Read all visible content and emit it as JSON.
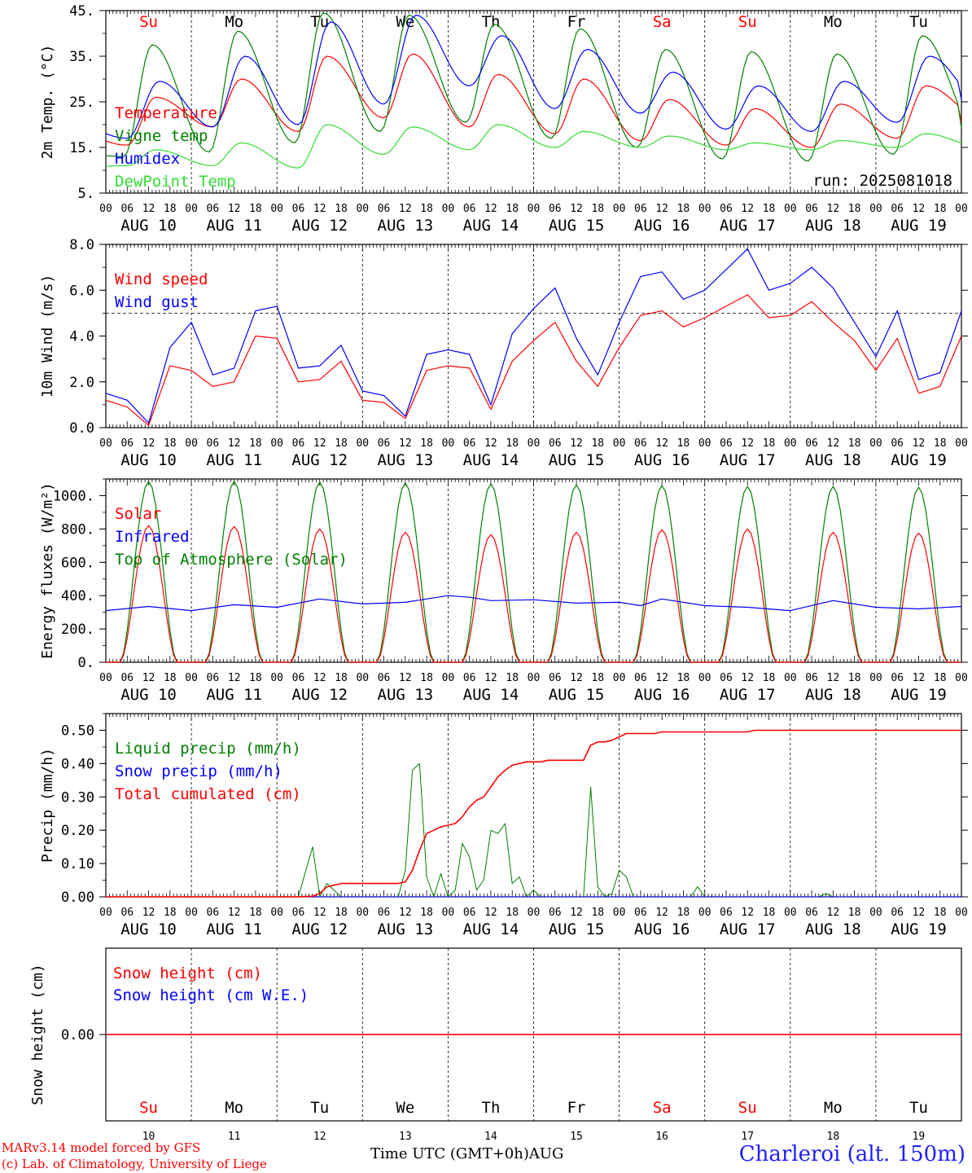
{
  "colors": {
    "red": "#ff0000",
    "green": "#008000",
    "blue": "#0000ff",
    "lime": "#33dd33",
    "axis": "#000000"
  },
  "days": {
    "names": [
      "Su",
      "Mo",
      "Tu",
      "We",
      "Th",
      "Fr",
      "Sa",
      "Su",
      "Mo",
      "Tu"
    ],
    "weekend": [
      true,
      false,
      false,
      false,
      false,
      false,
      true,
      true,
      false,
      false
    ],
    "dates": [
      "AUG 10",
      "AUG 11",
      "AUG 12",
      "AUG 13",
      "AUG 14",
      "AUG 15",
      "AUG 16",
      "AUG 17",
      "AUG 18",
      "AUG 19"
    ],
    "numbers": [
      "10",
      "11",
      "12",
      "13",
      "14",
      "15",
      "16",
      "17",
      "18",
      "19"
    ],
    "hour_ticks": [
      "00",
      "06",
      "12",
      "18"
    ],
    "final_tick": "00"
  },
  "footer": {
    "credit_line1": "MARv3.14 model forced by GFS",
    "credit_line2": "(c) Lab. of Climatology, University of Liege",
    "xaxis_title": "Time UTC (GMT+0h)AUG",
    "station": "Charleroi (alt. 150m)"
  },
  "chart_data": [
    {
      "type": "line",
      "ylabel": "2m Temp. (°C)",
      "ylim": [
        5,
        45
      ],
      "yticks": [
        "5.",
        "15.",
        "25.",
        "35.",
        "45."
      ],
      "annotation": "run: 2025081018",
      "series": [
        {
          "name": "Temperature",
          "color": "#ff0000",
          "min": [
            15.5,
            19.5,
            18.5,
            21.5,
            19.5,
            18.0,
            16.5,
            15.5,
            15.0,
            17.0
          ],
          "max": [
            26.0,
            30.0,
            35.0,
            35.5,
            31.0,
            30.0,
            25.5,
            23.5,
            24.5,
            28.5
          ],
          "start": 18.5,
          "end": 21.5
        },
        {
          "name": "Vigne temp",
          "color": "#008000",
          "min": [
            13.0,
            14.0,
            16.0,
            18.5,
            20.5,
            17.0,
            15.0,
            12.5,
            12.0,
            13.5
          ],
          "max": [
            37.5,
            40.5,
            44.5,
            44.0,
            42.0,
            41.0,
            36.5,
            36.0,
            35.5,
            39.5
          ],
          "start": 14.0,
          "end": 18.0
        },
        {
          "name": "Humidex",
          "color": "#0000ff",
          "min": [
            17.0,
            19.5,
            20.0,
            24.5,
            28.5,
            23.5,
            22.5,
            19.0,
            18.5,
            20.5
          ],
          "max": [
            29.5,
            35.0,
            42.5,
            44.0,
            39.5,
            36.5,
            31.5,
            28.5,
            29.5,
            35.0
          ],
          "start": 20.0,
          "end": 25.0
        },
        {
          "name": "DewPoint Temp",
          "color": "#33dd33",
          "min": [
            11.0,
            11.0,
            10.5,
            13.5,
            14.5,
            15.0,
            15.0,
            14.5,
            14.5,
            15.0
          ],
          "max": [
            14.5,
            16.0,
            20.0,
            19.5,
            20.0,
            18.5,
            17.5,
            16.0,
            16.5,
            18.0
          ],
          "start": 10.5,
          "end": 15.0
        }
      ]
    },
    {
      "type": "line",
      "ylabel": "10m Wind (m/s)",
      "ylim": [
        0,
        8
      ],
      "yticks": [
        "0.0",
        "2.0",
        "4.0",
        "6.0",
        "8.0"
      ],
      "reference_line": 5.0,
      "x_hours": [
        0,
        6,
        12,
        18,
        24,
        30,
        36,
        42,
        48,
        54,
        60,
        66,
        72,
        78,
        84,
        90,
        96,
        102,
        108,
        114,
        120,
        126,
        132,
        138,
        144,
        150,
        156,
        162,
        168,
        174,
        180,
        186,
        192,
        198,
        204,
        210,
        216,
        222,
        228,
        234,
        240
      ],
      "series": [
        {
          "name": "Wind speed",
          "color": "#ff0000",
          "values": [
            1.2,
            0.9,
            0.1,
            2.7,
            2.5,
            1.8,
            2.0,
            4.0,
            3.9,
            2.0,
            2.1,
            2.9,
            1.2,
            1.1,
            0.4,
            2.5,
            2.7,
            2.6,
            0.8,
            2.9,
            3.8,
            4.6,
            2.9,
            1.8,
            3.5,
            4.9,
            5.1,
            4.4,
            4.8,
            5.3,
            5.8,
            4.8,
            4.9,
            5.5,
            4.6,
            3.8,
            2.5,
            3.9,
            1.5,
            1.8,
            4.0
          ]
        },
        {
          "name": "Wind gust",
          "color": "#0000ff",
          "values": [
            1.5,
            1.2,
            0.2,
            3.5,
            4.6,
            2.3,
            2.6,
            5.1,
            5.3,
            2.6,
            2.7,
            3.6,
            1.6,
            1.4,
            0.5,
            3.2,
            3.4,
            3.2,
            1.0,
            4.1,
            5.2,
            6.1,
            3.9,
            2.3,
            4.6,
            6.6,
            6.8,
            5.6,
            6.0,
            6.9,
            7.8,
            6.0,
            6.3,
            7.0,
            6.1,
            4.6,
            3.1,
            5.1,
            2.1,
            2.4,
            5.1
          ]
        }
      ]
    },
    {
      "type": "line",
      "ylabel": "Energy fluxes (W/m²)",
      "ylim": [
        0,
        1100
      ],
      "yticks": [
        "0.",
        "200.",
        "400.",
        "600.",
        "800.",
        "1000."
      ],
      "series": [
        {
          "name": "Solar",
          "color": "#ff0000",
          "peak": [
            820,
            815,
            800,
            780,
            765,
            780,
            795,
            800,
            780,
            775
          ]
        },
        {
          "name": "Infrared",
          "color": "#0000ff",
          "x_hours": [
            0,
            12,
            24,
            36,
            48,
            60,
            72,
            84,
            96,
            102,
            108,
            120,
            132,
            144,
            150,
            156,
            168,
            180,
            192,
            204,
            216,
            228,
            240
          ],
          "values": [
            310,
            335,
            310,
            345,
            330,
            380,
            350,
            360,
            400,
            390,
            370,
            375,
            355,
            360,
            340,
            380,
            340,
            330,
            310,
            370,
            330,
            320,
            335
          ]
        },
        {
          "name": "Top of Atmosphere (Solar)",
          "color": "#008000",
          "peak": [
            1085,
            1085,
            1080,
            1075,
            1070,
            1065,
            1060,
            1055,
            1055,
            1050
          ]
        }
      ]
    },
    {
      "type": "line",
      "ylabel": "Precip (mm/h)",
      "ylim": [
        0,
        0.55
      ],
      "yticks": [
        "0.00",
        "0.10",
        "0.20",
        "0.30",
        "0.40",
        "0.50"
      ],
      "x_hours": [
        0,
        48,
        54,
        58,
        60,
        62,
        66,
        72,
        82,
        84,
        86,
        88,
        90,
        92,
        94,
        96,
        98,
        100,
        102,
        104,
        106,
        108,
        110,
        112,
        114,
        116,
        118,
        120,
        122,
        124,
        126,
        128,
        130,
        132,
        134,
        136,
        138,
        140,
        142,
        144,
        146,
        148,
        150,
        152,
        154,
        156,
        158,
        160,
        162,
        164,
        166,
        168,
        170,
        172,
        174,
        176,
        178,
        180,
        182,
        184,
        186,
        188,
        190,
        192,
        194,
        196,
        198,
        200,
        202,
        204,
        206,
        208,
        210,
        212,
        214,
        216,
        218,
        220,
        222,
        224,
        226,
        228,
        230,
        232,
        234,
        236,
        238,
        240
      ],
      "series": [
        {
          "name": "Liquid precip (mm/h)",
          "color": "#008000",
          "values": [
            0,
            0,
            0,
            0.15,
            0,
            0.04,
            0,
            0,
            0,
            0.08,
            0.38,
            0.4,
            0.06,
            0,
            0.07,
            0,
            0.02,
            0.16,
            0.12,
            0.02,
            0.05,
            0.2,
            0.19,
            0.22,
            0.04,
            0.06,
            0,
            0.02,
            0,
            0,
            0,
            0,
            0,
            0,
            0,
            0.33,
            0.03,
            0,
            0.01,
            0.08,
            0.06,
            0,
            0,
            0,
            0,
            0,
            0,
            0,
            0,
            0,
            0.03,
            0,
            0,
            0,
            0,
            0,
            0,
            0,
            0,
            0,
            0,
            0,
            0,
            0,
            0,
            0,
            0,
            0,
            0.01,
            0,
            0,
            0,
            0,
            0,
            0,
            0,
            0,
            0,
            0,
            0,
            0,
            0,
            0,
            0,
            0,
            0,
            0,
            0
          ]
        },
        {
          "name": "Snow precip (mm/h)",
          "color": "#0000ff",
          "values": [
            0,
            0,
            0,
            0,
            0,
            0,
            0,
            0,
            0,
            0,
            0,
            0,
            0,
            0,
            0,
            0,
            0,
            0,
            0,
            0,
            0,
            0,
            0,
            0,
            0,
            0,
            0,
            0,
            0,
            0,
            0,
            0,
            0,
            0,
            0,
            0,
            0,
            0,
            0,
            0,
            0,
            0,
            0,
            0,
            0,
            0,
            0,
            0,
            0,
            0,
            0,
            0,
            0,
            0,
            0,
            0,
            0,
            0,
            0,
            0,
            0,
            0,
            0,
            0,
            0,
            0,
            0,
            0,
            0,
            0,
            0,
            0,
            0,
            0,
            0,
            0,
            0,
            0,
            0,
            0,
            0,
            0,
            0,
            0,
            0,
            0,
            0,
            0
          ]
        },
        {
          "name": "Total cumulated (cm)",
          "color": "#ff0000",
          "values": [
            0,
            0,
            0,
            0.002,
            0.01,
            0.03,
            0.04,
            0.04,
            0.04,
            0.045,
            0.08,
            0.14,
            0.19,
            0.2,
            0.21,
            0.215,
            0.22,
            0.24,
            0.27,
            0.29,
            0.3,
            0.33,
            0.36,
            0.38,
            0.395,
            0.4,
            0.405,
            0.405,
            0.405,
            0.41,
            0.41,
            0.41,
            0.41,
            0.41,
            0.41,
            0.455,
            0.465,
            0.465,
            0.47,
            0.48,
            0.49,
            0.49,
            0.49,
            0.49,
            0.49,
            0.495,
            0.495,
            0.495,
            0.495,
            0.495,
            0.495,
            0.495,
            0.495,
            0.495,
            0.495,
            0.495,
            0.495,
            0.495,
            0.5,
            0.5,
            0.5,
            0.5,
            0.5,
            0.5,
            0.5,
            0.5,
            0.5,
            0.5,
            0.5,
            0.5,
            0.5,
            0.5,
            0.5,
            0.5,
            0.5,
            0.5,
            0.5,
            0.5,
            0.5,
            0.5,
            0.5,
            0.5,
            0.5,
            0.5,
            0.5,
            0.5,
            0.5,
            0.5
          ]
        }
      ]
    },
    {
      "type": "line",
      "ylabel": "Snow height (cm)",
      "yticks": [
        "0.00"
      ],
      "series": [
        {
          "name": "Snow height (cm)",
          "color": "#ff0000",
          "values": [
            0,
            0
          ]
        },
        {
          "name": "Snow height (cm W.E.)",
          "color": "#0000ff",
          "values": [
            0,
            0
          ]
        }
      ]
    }
  ]
}
